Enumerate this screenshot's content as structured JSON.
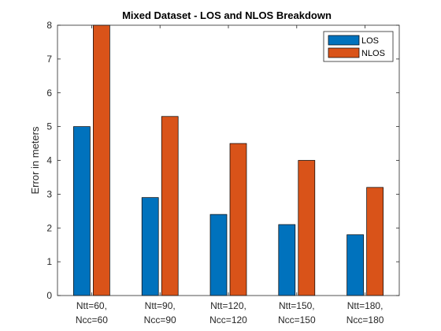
{
  "chart_data": {
    "type": "bar",
    "title": "Mixed Dataset - LOS and NLOS Breakdown",
    "xlabel": "",
    "ylabel": "Error in meters",
    "ylim": [
      0,
      8
    ],
    "yticks": [
      0,
      1,
      2,
      3,
      4,
      5,
      6,
      7,
      8
    ],
    "categories": [
      [
        "Ntt=60,",
        "Ncc=60"
      ],
      [
        "Ntt=90,",
        "Ncc=90"
      ],
      [
        "Ntt=120,",
        "Ncc=120"
      ],
      [
        "Ntt=150,",
        "Ncc=150"
      ],
      [
        "Ntt=180,",
        "Ncc=180"
      ]
    ],
    "series": [
      {
        "name": "LOS",
        "color": "#0072BD",
        "values": [
          5.0,
          2.9,
          2.4,
          2.1,
          1.8
        ]
      },
      {
        "name": "NLOS",
        "color": "#D95319",
        "values": [
          8.0,
          5.3,
          4.5,
          4.0,
          3.2
        ]
      }
    ],
    "grid": false,
    "legend": "top-right"
  }
}
